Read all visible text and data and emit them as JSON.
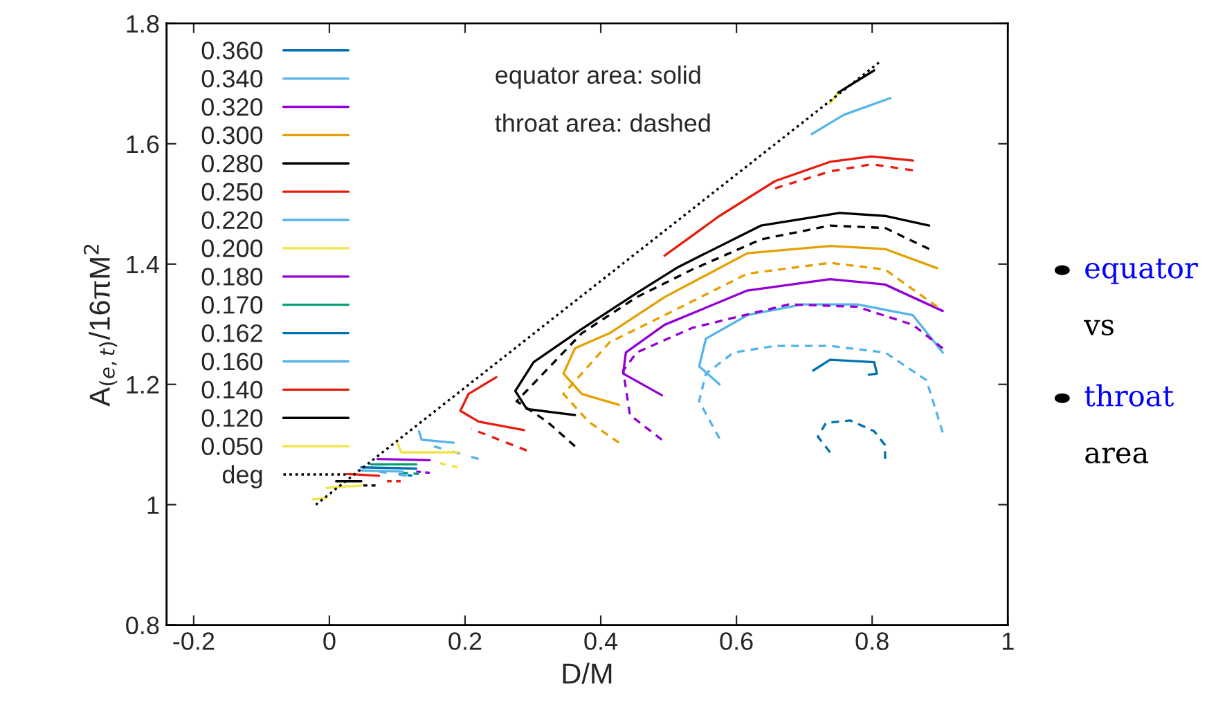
{
  "chart_data": {
    "type": "line",
    "xlabel": "D/M",
    "ylabel": "A$_{(e,t)}$/16πM$^{2}$",
    "xlim": [
      -0.24,
      1
    ],
    "ylim": [
      0.8,
      1.8
    ],
    "xticks": [
      -0.2,
      {
        "value": 0,
        "label": "0"
      },
      0.2,
      0.4,
      0.6,
      0.8,
      {
        "value": 1,
        "label": "1"
      }
    ],
    "yticks": [
      0.8,
      {
        "value": 1,
        "label": "1"
      },
      1.2,
      1.4,
      1.6,
      1.8
    ],
    "grid": false,
    "legend": "top left",
    "annotations": [
      "equator area: solid",
      "throat area: dashed",
      "equator",
      "vs",
      "throat",
      "area"
    ],
    "series": [
      {
        "name": "0.360",
        "color": "#0072b2",
        "line_style": "solid",
        "x": [
          0.713,
          0.738,
          0.803,
          0.807,
          0.795
        ],
        "values": [
          1.223,
          1.241,
          1.237,
          1.218,
          1.216
        ]
      },
      {
        "color": "#0072b2",
        "line_style": "dashed",
        "x": [
          0.738,
          0.72,
          0.732,
          0.768,
          0.803,
          0.819,
          0.819
        ],
        "values": [
          1.087,
          1.113,
          1.136,
          1.14,
          1.122,
          1.099,
          1.076
        ]
      },
      {
        "name": "0.340",
        "color": "#56b4e9",
        "line_style": "solid",
        "x": [
          0.575,
          0.545,
          0.555,
          0.616,
          0.697,
          0.778,
          0.86,
          0.904
        ],
        "values": [
          1.2,
          1.23,
          1.276,
          1.315,
          1.333,
          1.333,
          1.315,
          1.253
        ]
      },
      {
        "color": "#56b4e9",
        "line_style": "dashed",
        "x": [
          0.575,
          0.545,
          0.555,
          0.596,
          0.657,
          0.738,
          0.819,
          0.88,
          0.904
        ],
        "values": [
          1.11,
          1.172,
          1.218,
          1.253,
          1.264,
          1.264,
          1.253,
          1.207,
          1.12
        ]
      },
      {
        "name": "0.320",
        "color": "#9400d3",
        "line_style": "solid",
        "x": [
          0.49,
          0.433,
          0.437,
          0.494,
          0.616,
          0.738,
          0.819,
          0.904
        ],
        "values": [
          1.182,
          1.218,
          1.253,
          1.299,
          1.356,
          1.375,
          1.366,
          1.322
        ]
      },
      {
        "color": "#9400d3",
        "line_style": "dashed",
        "x": [
          0.49,
          0.443,
          0.433,
          0.453,
          0.535,
          0.677,
          0.778,
          0.86,
          0.904
        ],
        "values": [
          1.108,
          1.149,
          1.223,
          1.253,
          1.294,
          1.333,
          1.329,
          1.299,
          1.26
        ]
      },
      {
        "name": "0.300",
        "color": "#e69f00",
        "line_style": "solid",
        "x": [
          0.427,
          0.372,
          0.345,
          0.362,
          0.413,
          0.494,
          0.616,
          0.738,
          0.819,
          0.896
        ],
        "values": [
          1.166,
          1.184,
          1.218,
          1.26,
          1.285,
          1.345,
          1.418,
          1.43,
          1.425,
          1.393
        ]
      },
      {
        "color": "#e69f00",
        "line_style": "dashed",
        "x": [
          0.427,
          0.382,
          0.345,
          0.413,
          0.494,
          0.616,
          0.738,
          0.819,
          0.896
        ],
        "values": [
          1.103,
          1.138,
          1.184,
          1.27,
          1.315,
          1.384,
          1.402,
          1.391,
          1.329
        ]
      },
      {
        "name": "0.280",
        "color": "#000000",
        "line_style": "solid",
        "x": [
          0.362,
          0.291,
          0.274,
          0.301,
          0.372,
          0.453,
          0.514,
          0.636,
          0.752,
          0.819,
          0.884
        ],
        "values": [
          1.149,
          1.159,
          1.189,
          1.237,
          1.292,
          1.352,
          1.395,
          1.464,
          1.485,
          1.48,
          1.464
        ]
      },
      {
        "color": "#000000",
        "line_style": "dashed",
        "x": [
          0.362,
          0.321,
          0.276,
          0.372,
          0.453,
          0.535,
          0.636,
          0.738,
          0.819,
          0.884
        ],
        "values": [
          1.097,
          1.138,
          1.172,
          1.285,
          1.345,
          1.391,
          1.441,
          1.464,
          1.46,
          1.425
        ]
      },
      {
        "name": "0.250",
        "color": "#e51e10",
        "line_style": "solid",
        "x": [
          0.287,
          0.22,
          0.193,
          0.205,
          0.246,
          0.37,
          0.494,
          0.575,
          0.657,
          0.738,
          0.799,
          0.86
        ],
        "values": [
          1.124,
          1.138,
          1.156,
          1.184,
          1.212,
          null,
          1.414,
          1.48,
          1.538,
          1.57,
          1.579,
          1.572
        ]
      },
      {
        "color": "#e51e10",
        "line_style": "dashed",
        "x": [
          0.291,
          0.209,
          0.43,
          0.657,
          0.738,
          0.799,
          0.86
        ],
        "values": [
          1.09,
          1.126,
          null,
          1.526,
          1.554,
          1.566,
          1.556
        ]
      },
      {
        "name": "0.220",
        "color": "#56b4e9",
        "line_style": "solid",
        "x": [
          0.132,
          0.136,
          0.183
        ],
        "values": [
          1.122,
          1.108,
          1.103
        ]
      },
      {
        "color": "#56b4e9",
        "line_style": "dashed",
        "x": [
          0.154,
          0.22
        ],
        "values": [
          1.097,
          1.076
        ]
      },
      {
        "name": "0.200",
        "color": "#f0e442",
        "line_style": "solid",
        "x": [
          0.1,
          0.106,
          0.189
        ],
        "values": [
          1.103,
          1.087,
          1.087
        ]
      },
      {
        "color": "#f0e442",
        "line_style": "dashed",
        "x": [
          0.163,
          0.189
        ],
        "values": [
          1.069,
          1.062
        ]
      },
      {
        "name": "0.180",
        "color": "#9400d3",
        "line_style": "solid",
        "x": [
          0.071,
          0.148
        ],
        "values": [
          1.076,
          1.074
        ]
      },
      {
        "color": "#9400d3",
        "line_style": "dashed",
        "x": [
          0.128,
          0.148
        ],
        "values": [
          1.055,
          1.053
        ]
      },
      {
        "name": "0.170",
        "color": "#009e73",
        "line_style": "solid",
        "x": [
          0.061,
          0.128
        ],
        "values": [
          1.067,
          1.067
        ]
      },
      {
        "color": "#009e73",
        "line_style": "dashed",
        "x": [
          0.108,
          0.132
        ],
        "values": [
          1.053,
          1.051
        ]
      },
      {
        "name": "0.162",
        "color": "#0072b2",
        "line_style": "solid",
        "x": [
          0.047,
          0.128
        ],
        "values": [
          1.062,
          1.06
        ]
      },
      {
        "color": "#0072b2",
        "line_style": "dashed",
        "x": [
          0.102,
          0.122
        ],
        "values": [
          1.051,
          1.048
        ]
      },
      {
        "name": "0.160",
        "color": "#56b4e9",
        "line_style": "solid",
        "x": [
          0.043,
          0.108
        ],
        "values": [
          1.057,
          1.055
        ]
      },
      {
        "color": "#56b4e9",
        "line_style": "dashed",
        "x": [
          0.073,
          0.114
        ],
        "values": [
          1.055,
          1.048
        ]
      },
      {
        "name": "0.140",
        "color": "#e51e10",
        "line_style": "solid",
        "x": [
          0.026,
          0.073
        ],
        "values": [
          1.051,
          1.048
        ]
      },
      {
        "color": "#e51e10",
        "line_style": "dashed",
        "x": [
          0.085,
          0.105
        ],
        "values": [
          1.039,
          1.039
        ]
      },
      {
        "name": "0.120",
        "color": "#000000",
        "line_style": "solid",
        "x": [
          0.01,
          0.047
        ],
        "values": [
          1.039,
          1.039
        ]
      },
      {
        "color": "#000000",
        "line_style": "dashed",
        "x": [
          0.05,
          0.068
        ],
        "values": [
          1.032,
          1.032
        ]
      },
      {
        "name": "0.050",
        "color": "#f0e442",
        "line_style": "solid",
        "x": [
          -0.004,
          0.047
        ],
        "values": [
          1.028,
          1.032
        ]
      },
      {
        "color": "#f0e442",
        "line_style": "solid",
        "x": [
          -0.024,
          -0.004
        ],
        "values": [
          1.009,
          1.011
        ]
      },
      {
        "color": "#56b4e9",
        "line_style": "solid",
        "x": [
          0.711,
          0.758,
          0.827
        ],
        "values": [
          1.616,
          1.648,
          1.676
        ]
      },
      {
        "color": "#f0e442",
        "line_style": "solid",
        "x": [
          0.738,
          0.75
        ],
        "values": [
          1.667,
          1.685
        ]
      },
      {
        "color": "#000000",
        "line_style": "solid",
        "x": [
          0.75,
          0.803
        ],
        "values": [
          1.685,
          1.722
        ]
      },
      {
        "name": "deg",
        "color": "#000000",
        "line_style": "dotted",
        "x": [
          -0.02,
          0.81
        ],
        "values": [
          1.0,
          1.735
        ]
      }
    ]
  }
}
